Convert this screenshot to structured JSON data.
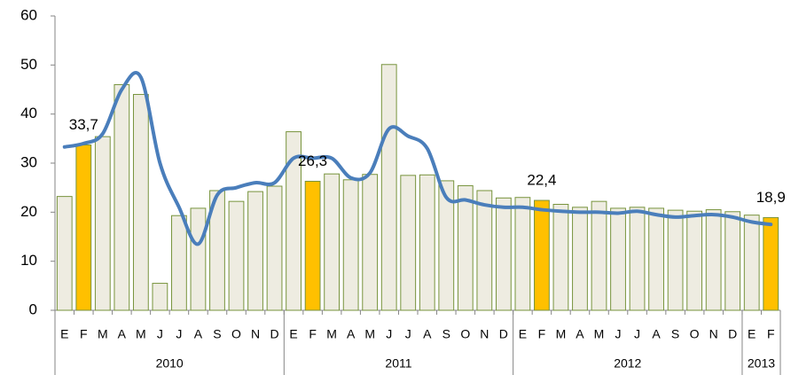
{
  "chart_data": {
    "type": "bar_line",
    "categories": [
      [
        "2010",
        "E"
      ],
      [
        "2010",
        "F"
      ],
      [
        "2010",
        "M"
      ],
      [
        "2010",
        "A"
      ],
      [
        "2010",
        "M"
      ],
      [
        "2010",
        "J"
      ],
      [
        "2010",
        "J"
      ],
      [
        "2010",
        "A"
      ],
      [
        "2010",
        "S"
      ],
      [
        "2010",
        "O"
      ],
      [
        "2010",
        "N"
      ],
      [
        "2010",
        "D"
      ],
      [
        "2011",
        "E"
      ],
      [
        "2011",
        "F"
      ],
      [
        "2011",
        "M"
      ],
      [
        "2011",
        "A"
      ],
      [
        "2011",
        "M"
      ],
      [
        "2011",
        "J"
      ],
      [
        "2011",
        "J"
      ],
      [
        "2011",
        "A"
      ],
      [
        "2011",
        "S"
      ],
      [
        "2011",
        "O"
      ],
      [
        "2011",
        "N"
      ],
      [
        "2011",
        "D"
      ],
      [
        "2012",
        "E"
      ],
      [
        "2012",
        "F"
      ],
      [
        "2012",
        "M"
      ],
      [
        "2012",
        "A"
      ],
      [
        "2012",
        "M"
      ],
      [
        "2012",
        "J"
      ],
      [
        "2012",
        "J"
      ],
      [
        "2012",
        "A"
      ],
      [
        "2012",
        "S"
      ],
      [
        "2012",
        "O"
      ],
      [
        "2012",
        "N"
      ],
      [
        "2012",
        "D"
      ],
      [
        "2013",
        "E"
      ],
      [
        "2013",
        "F"
      ]
    ],
    "series": [
      {
        "type": "bar",
        "edge_color": "#77933c",
        "values": [
          23.2,
          33.7,
          35.4,
          46,
          44,
          5.5,
          19.3,
          20.8,
          24.4,
          22.2,
          24.2,
          25.3,
          36.4,
          26.3,
          27.8,
          26.6,
          27.7,
          50.1,
          27.5,
          27.6,
          26.4,
          25.4,
          24.4,
          22.9,
          23.0,
          22.4,
          21.6,
          21.0,
          22.2,
          20.8,
          21.0,
          20.8,
          20.4,
          20.2,
          20.5,
          20.1,
          19.4,
          18.9
        ],
        "value_labels": [
          null,
          "33,7",
          null,
          null,
          null,
          null,
          null,
          null,
          null,
          null,
          null,
          null,
          null,
          "26,3",
          null,
          null,
          null,
          null,
          null,
          null,
          null,
          null,
          null,
          null,
          null,
          "22,4",
          null,
          null,
          null,
          null,
          null,
          null,
          null,
          null,
          null,
          null,
          null,
          "18,9"
        ],
        "colors": [
          "#eeece1",
          "#ffc000",
          "#eeece1",
          "#eeece1",
          "#eeece1",
          "#eeece1",
          "#eeece1",
          "#eeece1",
          "#eeece1",
          "#eeece1",
          "#eeece1",
          "#eeece1",
          "#eeece1",
          "#ffc000",
          "#eeece1",
          "#eeece1",
          "#eeece1",
          "#eeece1",
          "#eeece1",
          "#eeece1",
          "#eeece1",
          "#eeece1",
          "#eeece1",
          "#eeece1",
          "#eeece1",
          "#ffc000",
          "#eeece1",
          "#eeece1",
          "#eeece1",
          "#eeece1",
          "#eeece1",
          "#eeece1",
          "#eeece1",
          "#eeece1",
          "#eeece1",
          "#eeece1",
          "#eeece1",
          "#ffc000"
        ]
      },
      {
        "type": "line",
        "color": "#4a7ebb",
        "smooth": true,
        "values": [
          33.3,
          34,
          36,
          45,
          47.5,
          30,
          21,
          13.5,
          23.5,
          25,
          26,
          26,
          31,
          31,
          31,
          27,
          28,
          37,
          35.5,
          33,
          23,
          22.5,
          21.5,
          21,
          21,
          20.5,
          20.2,
          20,
          20,
          19.8,
          20.2,
          19.5,
          19,
          19.3,
          19.5,
          19,
          18,
          17.5
        ]
      }
    ],
    "ylim": [
      0,
      60
    ],
    "yticks": [
      0,
      10,
      20,
      30,
      40,
      50,
      60
    ]
  }
}
